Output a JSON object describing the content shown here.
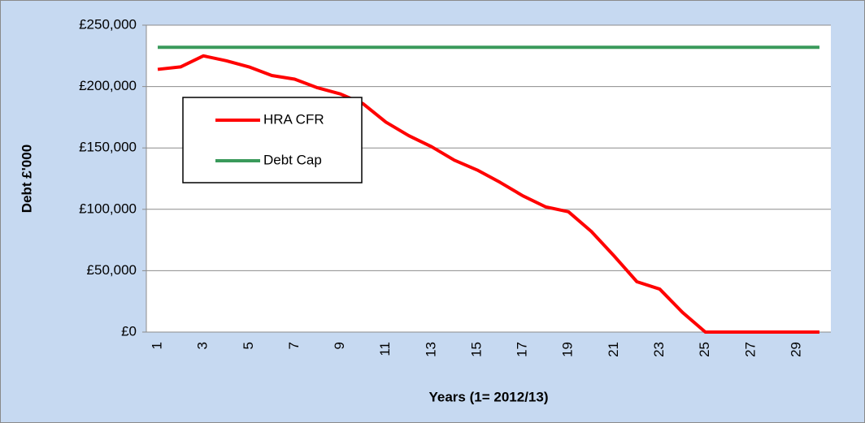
{
  "chart_data": {
    "type": "line",
    "xlabel": "Years (1= 2012/13)",
    "ylabel": "Debt £'000",
    "categories": [
      1,
      null,
      3,
      null,
      5,
      null,
      7,
      null,
      9,
      null,
      11,
      null,
      13,
      null,
      15,
      null,
      17,
      null,
      19,
      null,
      21,
      null,
      23,
      null,
      25,
      null,
      27,
      null,
      29,
      null
    ],
    "series": [
      {
        "name": "HRA CFR",
        "color": "#ff0000",
        "values": [
          214000,
          216000,
          225000,
          221000,
          216000,
          209000,
          206000,
          199000,
          194000,
          186000,
          171000,
          160000,
          151000,
          140000,
          132000,
          122000,
          111000,
          102000,
          98000,
          82000,
          62000,
          41000,
          35000,
          16000,
          0,
          0,
          0,
          0,
          0,
          0
        ]
      },
      {
        "name": "Debt Cap",
        "color": "#3a9a5b",
        "values": [
          232000,
          232000,
          232000,
          232000,
          232000,
          232000,
          232000,
          232000,
          232000,
          232000,
          232000,
          232000,
          232000,
          232000,
          232000,
          232000,
          232000,
          232000,
          232000,
          232000,
          232000,
          232000,
          232000,
          232000,
          232000,
          232000,
          232000,
          232000,
          232000,
          232000
        ]
      }
    ],
    "ylim": [
      0,
      250000
    ],
    "yticks": [
      {
        "value": 0,
        "label": "£0"
      },
      {
        "value": 50000,
        "label": "£50,000"
      },
      {
        "value": 100000,
        "label": "£100,000"
      },
      {
        "value": 150000,
        "label": "£150,000"
      },
      {
        "value": 200000,
        "label": "£200,000"
      },
      {
        "value": 250000,
        "label": "£250,000"
      }
    ],
    "grid": true,
    "legend_position": "upper left"
  }
}
